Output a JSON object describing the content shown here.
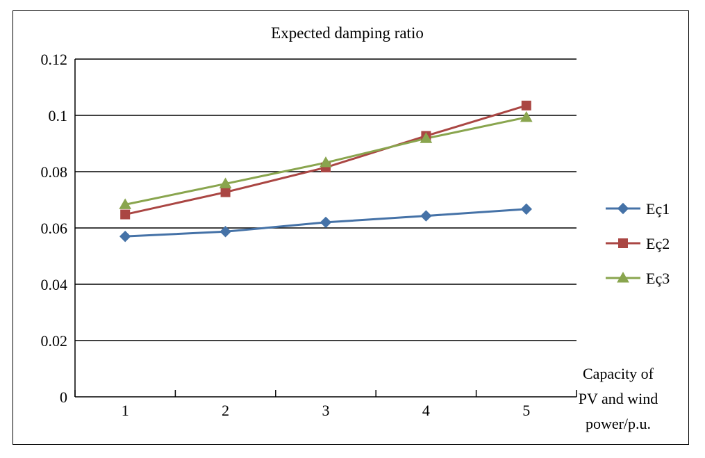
{
  "chart_data": {
    "type": "line",
    "title": "Expected damping ratio",
    "xlabel": [
      "Capacity of",
      "PV and wind",
      "power/p.u."
    ],
    "ylabel": "",
    "categories": [
      "1",
      "2",
      "3",
      "4",
      "5"
    ],
    "ylim": [
      0,
      0.12
    ],
    "yticks": [
      "0",
      "0.02",
      "0.04",
      "0.06",
      "0.08",
      "0.1",
      "0.12"
    ],
    "grid": true,
    "legend_position": "right",
    "series": [
      {
        "name": "Eç1",
        "values": [
          0.057,
          0.0587,
          0.062,
          0.0643,
          0.0667
        ],
        "color": "#4572A7",
        "marker": "diamond"
      },
      {
        "name": "Eç2",
        "values": [
          0.0648,
          0.0727,
          0.0815,
          0.0927,
          0.1035
        ],
        "color": "#AA4643",
        "marker": "square"
      },
      {
        "name": "Eç3",
        "values": [
          0.0683,
          0.0757,
          0.0832,
          0.0918,
          0.0993
        ],
        "color": "#89A54E",
        "marker": "triangle"
      }
    ]
  }
}
